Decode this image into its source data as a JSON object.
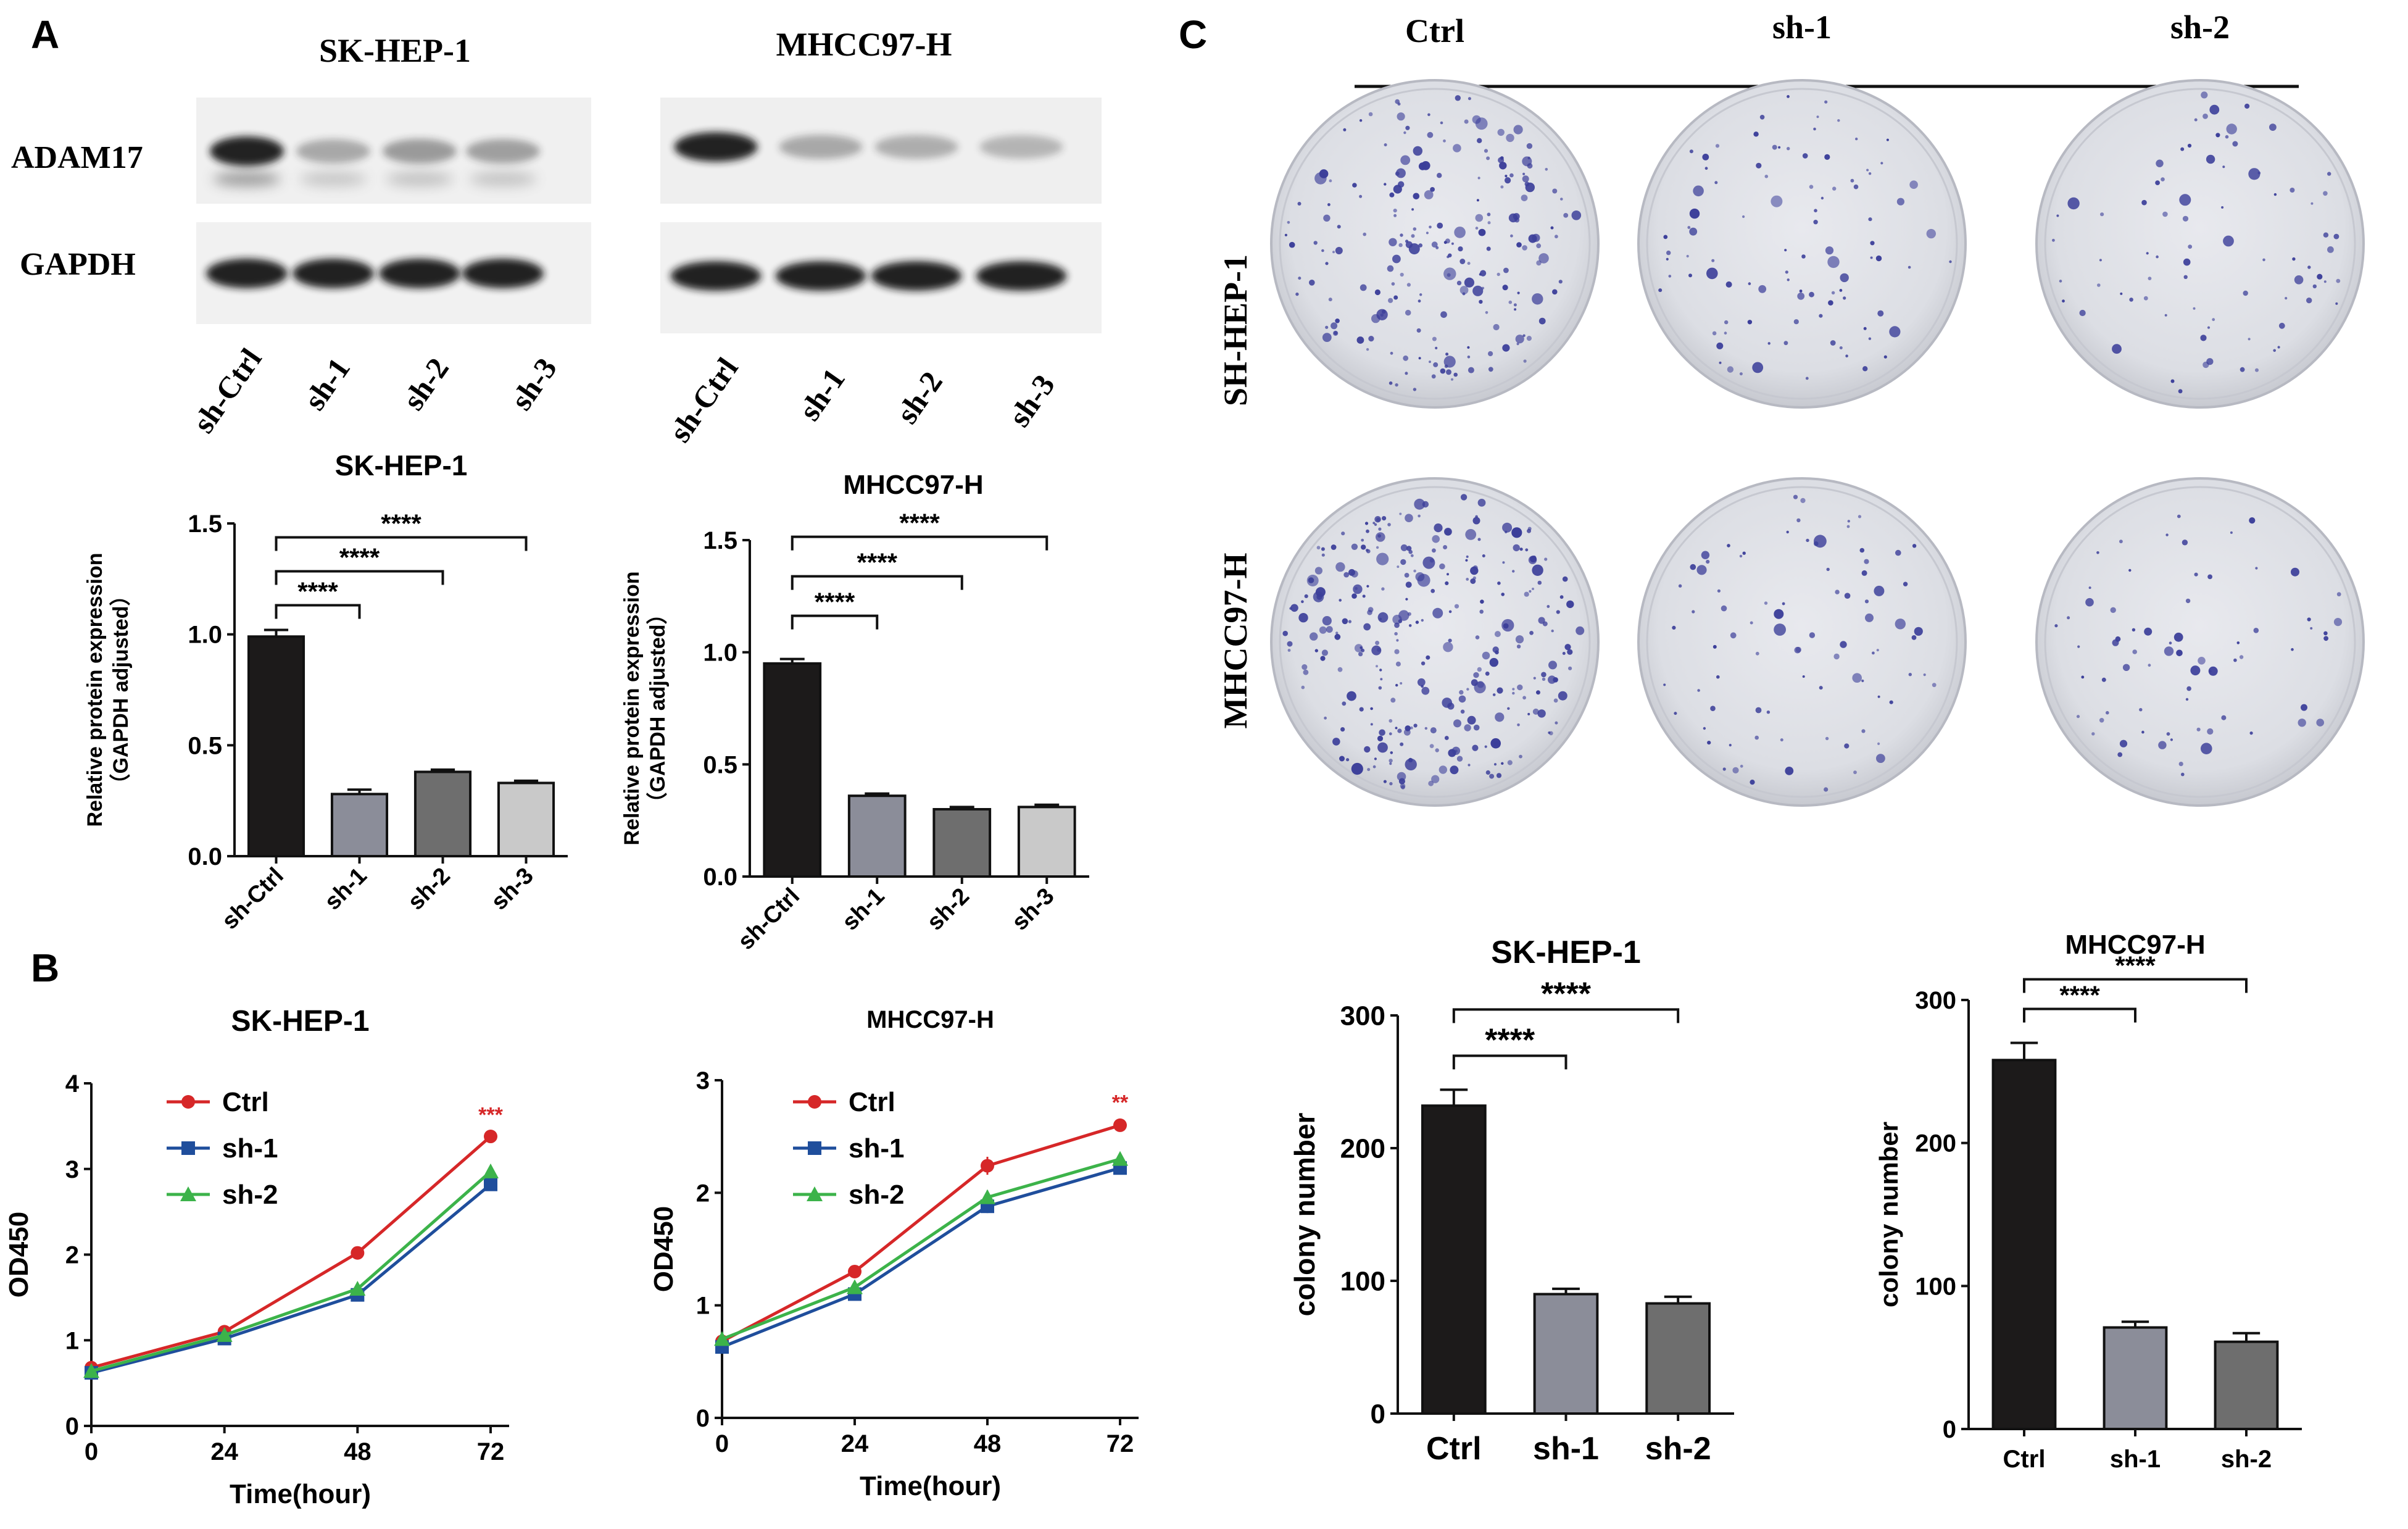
{
  "panels": {
    "A": "A",
    "B": "B",
    "C": "C"
  },
  "western": {
    "blots": [
      {
        "cell_line": "SK-HEP-1",
        "lanes": [
          "sh-Ctrl",
          "sh-1",
          "sh-2",
          "sh-3"
        ],
        "adam17_intensity": [
          1.0,
          0.25,
          0.33,
          0.3
        ]
      },
      {
        "cell_line": "MHCC97-H",
        "lanes": [
          "sh-Ctrl",
          "sh-1",
          "sh-2",
          "sh-3"
        ],
        "adam17_intensity": [
          1.0,
          0.25,
          0.22,
          0.18
        ]
      }
    ],
    "row_labels": [
      "ADAM17",
      "GAPDH"
    ]
  },
  "colony": {
    "column_labels": [
      "Ctrl",
      "sh-1",
      "sh-2"
    ],
    "row_labels": [
      "SH-HEP-1",
      "MHCC97-H"
    ]
  },
  "colors": {
    "ctrl": "#d62728",
    "sh1": "#1f4e9c",
    "sh2": "#3cb34a",
    "dish_stain": "#3c3f9a",
    "dish_bg": "#dfe1e6"
  },
  "chart_data": [
    {
      "id": "a1",
      "type": "bar",
      "title": "SK-HEP-1",
      "categories": [
        "sh-Ctrl",
        "sh-1",
        "sh-2",
        "sh-3"
      ],
      "values": [
        0.99,
        0.28,
        0.38,
        0.33
      ],
      "errors": [
        0.03,
        0.02,
        0.01,
        0.01
      ],
      "bar_colors": [
        "#1c1a1a",
        "#8b8d99",
        "#6e6e6e",
        "#c9c9c9"
      ],
      "ylabel_lines": [
        "Relative protein expression",
        "（GAPDH adjusted）"
      ],
      "ylim": [
        0,
        1.5
      ],
      "yticks": [
        0,
        0.5,
        1.0,
        1.5
      ],
      "ytick_labels": [
        "0.0",
        "0.5",
        "1.0",
        "1.5"
      ],
      "brackets": [
        {
          "from": 0,
          "to": 1,
          "label": "****"
        },
        {
          "from": 0,
          "to": 2,
          "label": "****"
        },
        {
          "from": 0,
          "to": 3,
          "label": "****"
        }
      ]
    },
    {
      "id": "a2",
      "type": "bar",
      "title": "MHCC97-H",
      "categories": [
        "sh-Ctrl",
        "sh-1",
        "sh-2",
        "sh-3"
      ],
      "values": [
        0.95,
        0.36,
        0.3,
        0.31
      ],
      "errors": [
        0.02,
        0.01,
        0.01,
        0.01
      ],
      "bar_colors": [
        "#1c1a1a",
        "#8b8d99",
        "#6e6e6e",
        "#c9c9c9"
      ],
      "ylabel_lines": [
        "Relative protein expression",
        "（GAPDH adjusted）"
      ],
      "ylim": [
        0,
        1.5
      ],
      "yticks": [
        0,
        0.5,
        1.0,
        1.5
      ],
      "ytick_labels": [
        "0.0",
        "0.5",
        "1.0",
        "1.5"
      ],
      "brackets": [
        {
          "from": 0,
          "to": 1,
          "label": "****"
        },
        {
          "from": 0,
          "to": 2,
          "label": "****"
        },
        {
          "from": 0,
          "to": 3,
          "label": "****"
        }
      ]
    },
    {
      "id": "b1",
      "type": "line",
      "title": "SK-HEP-1",
      "x": [
        0,
        24,
        48,
        72
      ],
      "xlabel": "Time(hour)",
      "ylabel": "OD450",
      "xlim": [
        0,
        72
      ],
      "ylim": [
        0,
        4
      ],
      "yticks": [
        0,
        1,
        2,
        3,
        4
      ],
      "series": [
        {
          "name": "Ctrl",
          "values": [
            0.68,
            1.1,
            2.02,
            3.38
          ],
          "errors": [
            0.03,
            0.03,
            0.04,
            0.03
          ],
          "marker": "circle",
          "color": "#d62728"
        },
        {
          "name": "sh-1",
          "values": [
            0.62,
            1.02,
            1.53,
            2.82
          ],
          "errors": [
            0.03,
            0.03,
            0.05,
            0.05
          ],
          "marker": "square",
          "color": "#1f4e9c"
        },
        {
          "name": "sh-2",
          "values": [
            0.64,
            1.06,
            1.6,
            2.97
          ],
          "errors": [
            0.03,
            0.03,
            0.07,
            0.05
          ],
          "marker": "triangle",
          "color": "#3cb34a"
        }
      ],
      "annotations": [
        {
          "x": 72,
          "y": 3.55,
          "text": "***"
        }
      ]
    },
    {
      "id": "b2",
      "type": "line",
      "title": "MHCC97-H",
      "x": [
        0,
        24,
        48,
        72
      ],
      "xlabel": "Time(hour)",
      "ylabel": "OD450",
      "xlim": [
        0,
        72
      ],
      "ylim": [
        0,
        3
      ],
      "yticks": [
        0,
        1,
        2,
        3
      ],
      "series": [
        {
          "name": "Ctrl",
          "values": [
            0.68,
            1.3,
            2.24,
            2.6
          ],
          "errors": [
            0.03,
            0.03,
            0.08,
            0.03
          ],
          "marker": "circle",
          "color": "#d62728"
        },
        {
          "name": "sh-1",
          "values": [
            0.63,
            1.1,
            1.88,
            2.22
          ],
          "errors": [
            0.03,
            0.03,
            0.06,
            0.04
          ],
          "marker": "square",
          "color": "#1f4e9c"
        },
        {
          "name": "sh-2",
          "values": [
            0.7,
            1.16,
            1.96,
            2.3
          ],
          "errors": [
            0.03,
            0.03,
            0.06,
            0.04
          ],
          "marker": "triangle",
          "color": "#3cb34a"
        }
      ],
      "annotations": [
        {
          "x": 72,
          "y": 2.74,
          "text": "**"
        }
      ]
    },
    {
      "id": "c1",
      "type": "bar",
      "title": "SK-HEP-1",
      "categories": [
        "Ctrl",
        "sh-1",
        "sh-2"
      ],
      "values": [
        232,
        90,
        83
      ],
      "errors": [
        12,
        4,
        5
      ],
      "bar_colors": [
        "#1c1a1a",
        "#8b8d99",
        "#6e6e6e"
      ],
      "ylabel": "colony number",
      "ylim": [
        0,
        300
      ],
      "yticks": [
        0,
        100,
        200,
        300
      ],
      "brackets": [
        {
          "from": 0,
          "to": 1,
          "label": "****"
        },
        {
          "from": 0,
          "to": 2,
          "label": "****"
        }
      ]
    },
    {
      "id": "c2",
      "type": "bar",
      "title": "MHCC97-H",
      "categories": [
        "Ctrl",
        "sh-1",
        "sh-2"
      ],
      "values": [
        258,
        71,
        61
      ],
      "errors": [
        12,
        4,
        6
      ],
      "bar_colors": [
        "#1c1a1a",
        "#8b8d99",
        "#6e6e6e"
      ],
      "ylabel": "colony number",
      "ylim": [
        0,
        300
      ],
      "yticks": [
        0,
        100,
        200,
        300
      ],
      "brackets": [
        {
          "from": 0,
          "to": 1,
          "label": "****"
        },
        {
          "from": 0,
          "to": 2,
          "label": "****"
        }
      ]
    }
  ]
}
